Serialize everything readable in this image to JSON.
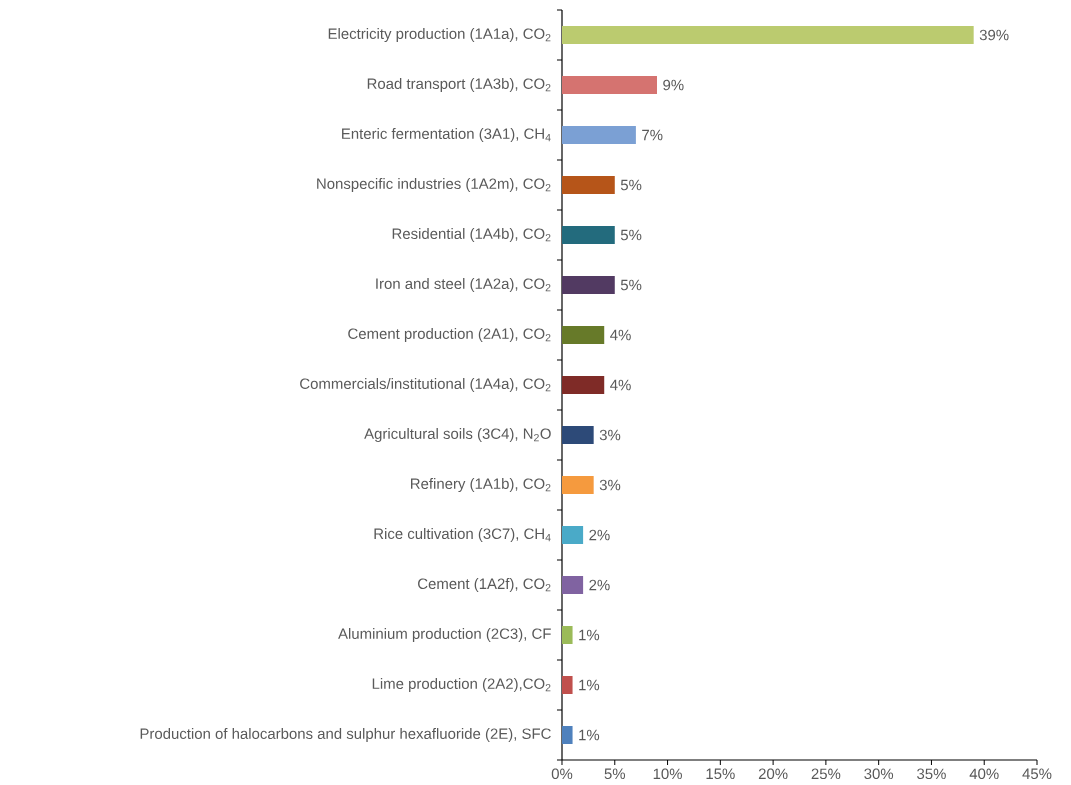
{
  "chart_data": {
    "type": "bar",
    "orientation": "horizontal",
    "categories": [
      "Electricity production (1A1a), CO$_{2}$",
      "Road transport (1A3b), CO$_{2}$",
      "Enteric fermentation (3A1), CH$_{4}$",
      "Nonspecific industries (1A2m), CO$_{2}$",
      "Residential (1A4b), CO$_{2}$",
      "Iron and steel (1A2a), CO$_{2}$",
      "Cement production (2A1), CO$_{2}$",
      "Commercials/institutional (1A4a), CO$_{2}$",
      "Agricultural soils (3C4), N$_{2}$O",
      "Refinery (1A1b), CO$_{2}$",
      "Rice cultivation (3C7), CH$_{4}$",
      "Cement (1A2f), CO$_{2}$",
      "Aluminium production (2C3), CF",
      "Lime production (2A2),CO$_{2}$",
      "Production of halocarbons and sulphur hexafluoride (2E), SFC"
    ],
    "values": [
      39,
      9,
      7,
      5,
      5,
      5,
      4,
      4,
      3,
      3,
      2,
      2,
      1,
      1,
      1
    ],
    "value_labels": [
      "39%",
      "9%",
      "7%",
      "5%",
      "5%",
      "5%",
      "4%",
      "4%",
      "3%",
      "3%",
      "2%",
      "2%",
      "1%",
      "1%",
      "1%"
    ],
    "colors": [
      "#bbcb6f",
      "#d57370",
      "#7ba0d4",
      "#b65519",
      "#236b7d",
      "#523a62",
      "#677a29",
      "#7f2b27",
      "#2d4a78",
      "#f59a3e",
      "#4aaac8",
      "#8063a1",
      "#9bbb59",
      "#c0504d",
      "#4f81bd"
    ],
    "xlim": [
      0,
      45
    ],
    "xticks": [
      {
        "value": 0,
        "label": "0%"
      },
      {
        "value": 5,
        "label": "5%"
      },
      {
        "value": 10,
        "label": "10%"
      },
      {
        "value": 15,
        "label": "15%"
      },
      {
        "value": 20,
        "label": "20%"
      },
      {
        "value": 25,
        "label": "25%"
      },
      {
        "value": 30,
        "label": "30%"
      },
      {
        "value": 35,
        "label": "35%"
      },
      {
        "value": 40,
        "label": "40%"
      },
      {
        "value": 45,
        "label": "45%"
      }
    ]
  }
}
